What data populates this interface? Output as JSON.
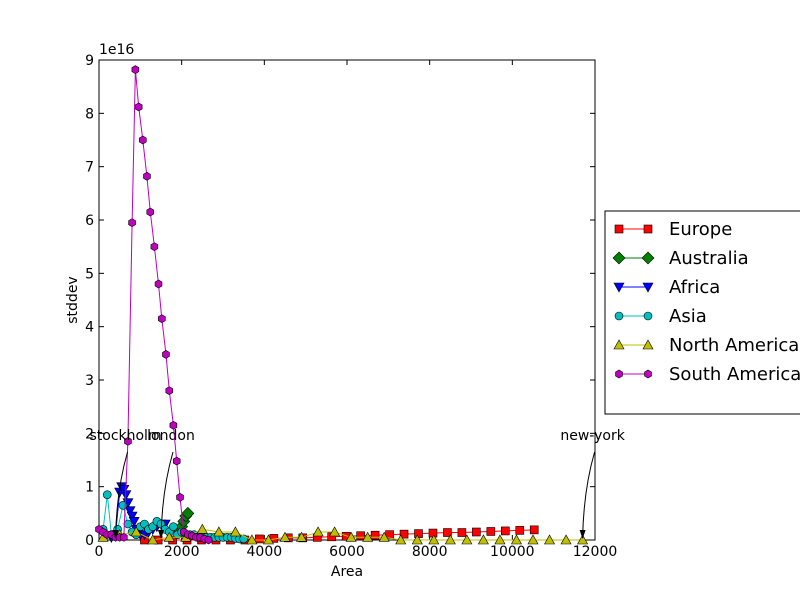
{
  "chart_data": {
    "type": "line",
    "xlabel": "Area",
    "ylabel": "stddev",
    "y_multiplier": "1e16",
    "xlim": [
      0,
      12000
    ],
    "ylim": [
      0,
      9
    ],
    "x_ticks": [
      0,
      2000,
      4000,
      6000,
      8000,
      10000,
      12000
    ],
    "y_ticks": [
      0,
      1,
      2,
      3,
      4,
      5,
      6,
      7,
      8,
      9
    ],
    "grid": false,
    "legend_placement": "outside right",
    "series": [
      {
        "name": "Europe",
        "color": "#ff0000",
        "marker": "square",
        "x": [
          1100,
          1430,
          1780,
          2130,
          2480,
          2830,
          3180,
          3530,
          3880,
          4230,
          4580,
          4930,
          5280,
          5630,
          5980,
          6330,
          6680,
          7030,
          7380,
          7730,
          8080,
          8430,
          8780,
          9130,
          9480,
          9830,
          10180,
          10530
        ],
        "y": [
          0.0,
          0.0,
          0.0,
          0.0,
          0.0,
          0.0,
          0.0,
          0.0,
          0.02,
          0.03,
          0.04,
          0.04,
          0.05,
          0.06,
          0.07,
          0.08,
          0.09,
          0.1,
          0.11,
          0.12,
          0.13,
          0.14,
          0.14,
          0.15,
          0.16,
          0.17,
          0.18,
          0.19
        ]
      },
      {
        "name": "Australia",
        "color": "#008000",
        "marker": "diamond",
        "x": [
          1950,
          2000,
          2050,
          2100,
          2150
        ],
        "y": [
          0.15,
          0.25,
          0.35,
          0.45,
          0.5
        ]
      },
      {
        "name": "Africa",
        "color": "#0000ff",
        "marker": "triangle-down",
        "x": [
          300,
          400,
          500,
          550,
          600,
          650,
          700,
          750,
          800,
          850,
          900,
          1000,
          1100,
          1200,
          1300,
          1400,
          1500,
          1600
        ],
        "y": [
          0.05,
          0.1,
          0.9,
          1.0,
          0.95,
          0.85,
          0.7,
          0.55,
          0.45,
          0.35,
          0.2,
          0.1,
          0.1,
          0.15,
          0.2,
          0.25,
          0.3,
          0.3
        ]
      },
      {
        "name": "Asia",
        "color": "#00bfbf",
        "marker": "circle",
        "x": [
          100,
          200,
          300,
          450,
          580,
          700,
          800,
          900,
          1000,
          1100,
          1200,
          1300,
          1400,
          1500,
          1600,
          1700,
          1800,
          1900,
          2000,
          2100,
          2200,
          2300,
          2400,
          2500,
          2600,
          2700,
          2800,
          2900,
          3000,
          3100,
          3200,
          3300,
          3400,
          3500
        ],
        "y": [
          0.2,
          0.85,
          0.1,
          0.2,
          0.65,
          0.3,
          0.15,
          0.1,
          0.25,
          0.3,
          0.2,
          0.25,
          0.35,
          0.3,
          0.2,
          0.15,
          0.25,
          0.1,
          0.15,
          0.1,
          0.1,
          0.1,
          0.05,
          0.05,
          0.05,
          0.05,
          0.05,
          0.05,
          0.05,
          0.05,
          0.05,
          0.03,
          0.02,
          0.02
        ]
      },
      {
        "name": "North America",
        "color": "#bfbf00",
        "marker": "triangle-up",
        "x": [
          100,
          500,
          900,
          1300,
          1700,
          2100,
          2500,
          2900,
          3300,
          3700,
          4100,
          4500,
          4900,
          5300,
          5700,
          6100,
          6500,
          6900,
          7300,
          7700,
          8100,
          8500,
          8900,
          9300,
          9700,
          10100,
          10500,
          10900,
          11300,
          11700
        ],
        "y": [
          0.05,
          0.1,
          0.15,
          0.0,
          0.05,
          0.05,
          0.2,
          0.15,
          0.15,
          0.0,
          0.0,
          0.05,
          0.05,
          0.15,
          0.15,
          0.05,
          0.05,
          0.05,
          0.0,
          0.0,
          0.0,
          0.0,
          0.0,
          0.0,
          0.0,
          0.0,
          0.0,
          0.0,
          0.0,
          0.0
        ]
      },
      {
        "name": "South America",
        "color": "#bf00bf",
        "marker": "hexagon",
        "x": [
          0,
          100,
          200,
          300,
          400,
          500,
          600,
          700,
          800,
          880,
          960,
          1060,
          1160,
          1240,
          1340,
          1440,
          1520,
          1620,
          1700,
          1800,
          1880,
          1960,
          2050,
          2150,
          2250,
          2350,
          2450,
          2550,
          2650
        ],
        "y": [
          0.2,
          0.15,
          0.1,
          0.1,
          0.05,
          0.05,
          0.05,
          1.85,
          5.95,
          8.82,
          8.12,
          7.5,
          6.82,
          6.15,
          5.5,
          4.8,
          4.15,
          3.48,
          2.8,
          2.15,
          1.48,
          0.8,
          0.15,
          0.1,
          0.08,
          0.05,
          0.05,
          0.02,
          0.0
        ]
      }
    ],
    "annotations": [
      {
        "text": "stockholm",
        "x": 400,
        "y": 0
      },
      {
        "text": "london",
        "x": 1500,
        "y": 0
      },
      {
        "text": "new-york",
        "x": 11700,
        "y": 0
      }
    ]
  }
}
